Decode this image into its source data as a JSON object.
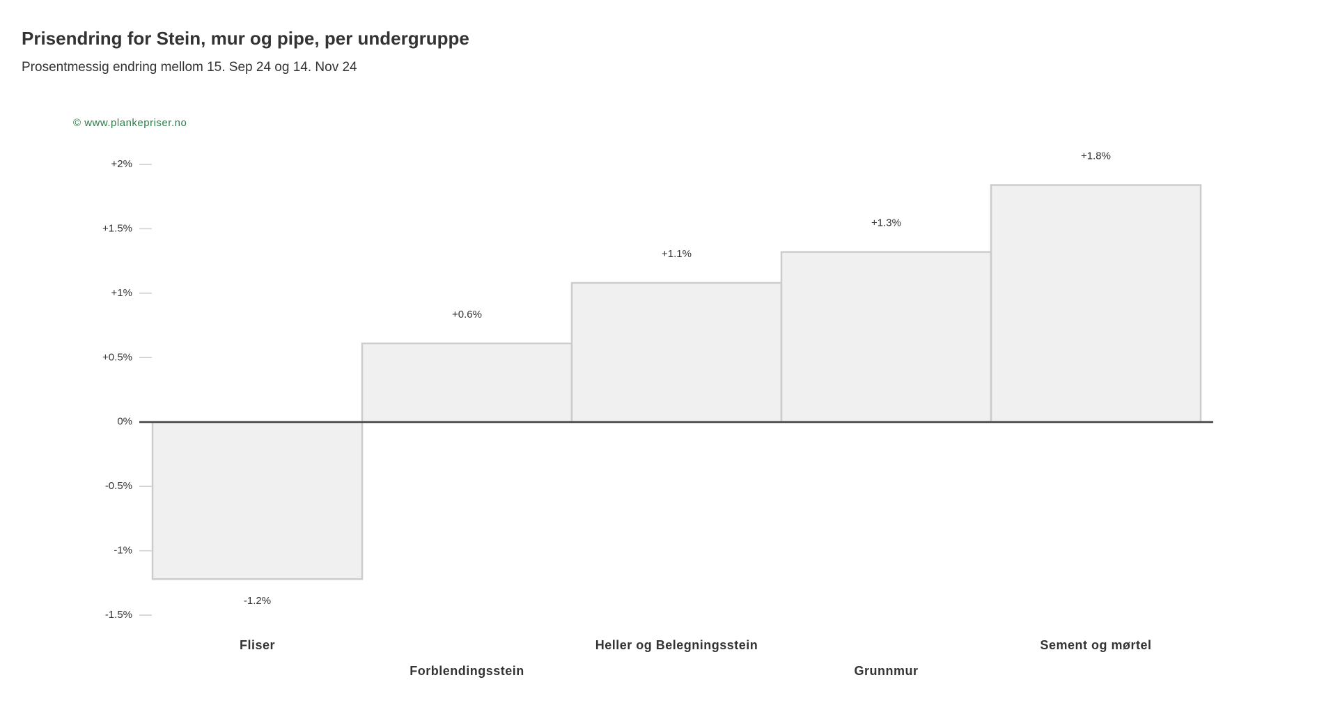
{
  "chart_data": {
    "type": "bar",
    "title": "Prisendring for Stein, mur og pipe, per undergruppe",
    "subtitle": "Prosentmessig endring mellom 15. Sep 24 og 14. Nov 24",
    "watermark": "© www.plankepriser.no",
    "categories": [
      "Fliser",
      "Forblendingsstein",
      "Heller og Belegningsstein",
      "Grunnmur",
      "Sement og mørtel"
    ],
    "values": [
      -1.22,
      0.61,
      1.08,
      1.32,
      1.84
    ],
    "value_labels": [
      "-1.2%",
      "+0.6%",
      "+1.1%",
      "+1.3%",
      "+1.8%"
    ],
    "color": "#f0f0f0",
    "ylim": [
      -1.5,
      2
    ],
    "yticks": [
      {
        "value": -1.5,
        "label": "-1.5%"
      },
      {
        "value": -1,
        "label": "-1%"
      },
      {
        "value": -0.5,
        "label": "-0.5%"
      },
      {
        "value": 0,
        "label": "0%"
      },
      {
        "value": 0.5,
        "label": "+0.5%"
      },
      {
        "value": 1,
        "label": "+1%"
      },
      {
        "value": 1.5,
        "label": "+1.5%"
      },
      {
        "value": 2,
        "label": "+2%"
      }
    ],
    "grid": false
  }
}
